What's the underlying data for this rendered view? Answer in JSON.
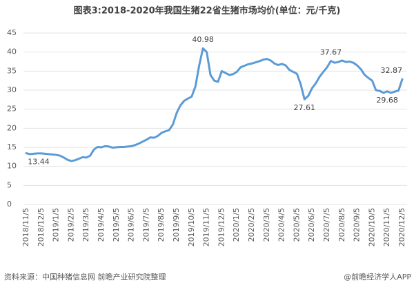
{
  "chart_data": {
    "type": "line",
    "title": "图表3:2018-2020年我国生猪22省生猪市场均价(单位：元/千克)",
    "source": "资料来源：中国种猪信息网 前瞻产业研究院整理",
    "credit": "@前瞻经济学人APP",
    "categories": [
      "2018/11/5",
      null,
      null,
      null,
      "2018/12/5",
      null,
      null,
      null,
      "2019/1/5",
      null,
      null,
      null,
      "2019/2/5",
      null,
      null,
      null,
      "2019/3/5",
      null,
      null,
      null,
      "2019/4/5",
      null,
      null,
      null,
      "2019/5/5",
      null,
      null,
      null,
      "2019/6/5",
      null,
      null,
      null,
      "2019/7/5",
      null,
      null,
      null,
      "2019/8/5",
      null,
      null,
      null,
      "2019/9/5",
      null,
      null,
      null,
      "2019/10/5",
      null,
      null,
      null,
      "2019/11/5",
      null,
      null,
      null,
      "2019/12/5",
      null,
      null,
      null,
      "2020/1/5",
      null,
      null,
      null,
      "2020/2/5",
      null,
      null,
      null,
      "2020/3/5",
      null,
      null,
      null,
      "2020/4/5",
      null,
      null,
      null,
      "2020/5/5",
      null,
      null,
      null,
      "2020/6/5",
      null,
      null,
      null,
      "2020/7/5",
      null,
      null,
      null,
      "2020/8/5",
      null,
      null,
      null,
      "2020/9/5",
      null,
      null,
      null,
      "2020/10/5",
      null,
      null,
      null,
      "2020/11/5",
      null,
      null,
      null,
      "2020/12/5"
    ],
    "series": [
      {
        "name": "均价",
        "color": "#5b9bd5",
        "values": [
          13.44,
          13.2,
          13.3,
          13.4,
          13.4,
          13.3,
          13.2,
          13.1,
          13.0,
          12.8,
          12.3,
          11.7,
          11.4,
          11.6,
          12.0,
          12.4,
          12.3,
          12.8,
          14.4,
          15.1,
          15.0,
          15.3,
          15.2,
          14.9,
          15.0,
          15.1,
          15.1,
          15.2,
          15.3,
          15.6,
          16.0,
          16.5,
          17.0,
          17.6,
          17.5,
          18.0,
          18.8,
          19.2,
          19.5,
          21.0,
          24.0,
          26.0,
          27.2,
          27.8,
          28.3,
          31.0,
          36.5,
          40.98,
          40.0,
          34.0,
          32.5,
          32.2,
          35.0,
          34.5,
          34.0,
          34.2,
          34.8,
          36.0,
          36.4,
          36.8,
          37.0,
          37.3,
          37.6,
          38.0,
          38.2,
          37.8,
          37.0,
          36.6,
          36.9,
          36.5,
          35.3,
          34.8,
          34.3,
          31.5,
          27.61,
          28.5,
          30.5,
          31.8,
          33.5,
          34.8,
          36.0,
          37.67,
          37.2,
          37.4,
          37.8,
          37.4,
          37.5,
          37.2,
          36.5,
          35.5,
          34.0,
          33.2,
          32.5,
          30.0,
          29.8,
          29.3,
          29.68,
          29.3,
          29.6,
          29.9,
          32.87
        ],
        "value_labels": [
          "13.44",
          null,
          null,
          null,
          null,
          null,
          null,
          null,
          null,
          null,
          null,
          null,
          null,
          null,
          null,
          null,
          null,
          null,
          null,
          null,
          null,
          null,
          null,
          null,
          null,
          null,
          null,
          null,
          null,
          null,
          null,
          null,
          null,
          null,
          null,
          null,
          null,
          null,
          null,
          null,
          null,
          null,
          null,
          null,
          null,
          null,
          null,
          "40.98",
          null,
          null,
          null,
          null,
          null,
          null,
          null,
          null,
          null,
          null,
          null,
          null,
          null,
          null,
          null,
          null,
          null,
          null,
          null,
          null,
          null,
          null,
          null,
          null,
          null,
          null,
          "27.61",
          null,
          null,
          null,
          null,
          null,
          null,
          "37.67",
          null,
          null,
          null,
          null,
          null,
          null,
          null,
          null,
          null,
          null,
          null,
          null,
          null,
          null,
          "29.68",
          null,
          null,
          null,
          "32.87"
        ]
      }
    ],
    "ylim": [
      0,
      45
    ],
    "yticks": [
      0,
      5,
      10,
      15,
      20,
      25,
      30,
      35,
      40,
      45
    ],
    "grid": true
  }
}
